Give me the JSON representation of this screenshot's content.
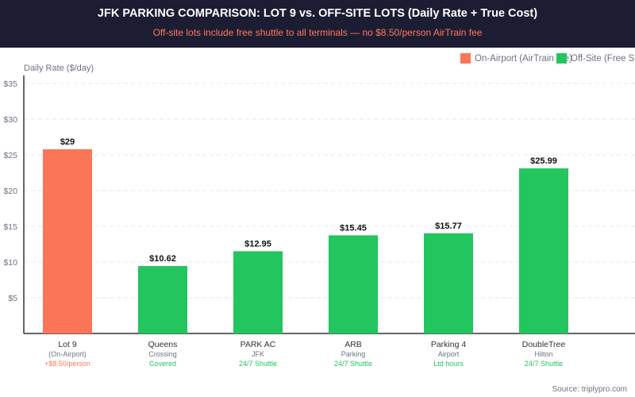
{
  "header": {
    "title": "JFK PARKING COMPARISON: LOT 9 vs. OFF-SITE LOTS (Daily Rate + True Cost)",
    "subtitle": "Off-site lots include free shuttle to all terminals — no $8.50/person AirTrain fee"
  },
  "source": "Source: triplypro.com",
  "chart_data": {
    "type": "bar",
    "ylabel": "Daily Rate ($/day)",
    "yticks": [
      "$5",
      "$10",
      "$15",
      "$20",
      "$25",
      "$30",
      "$35"
    ],
    "ytick_values": [
      5,
      10,
      15,
      20,
      25,
      30,
      35
    ],
    "ylim": [
      0,
      35
    ],
    "grid": true,
    "legend_position": "top-right",
    "legend": [
      {
        "label": "On-Airport (AirTrain fee)",
        "color": "#fb7656"
      },
      {
        "label": "Off-Site (Free Shuttle)",
        "color": "#22c55e"
      }
    ],
    "categories": [
      {
        "name": "Lot 9",
        "line2": "(On-Airport)",
        "line3": "+$8.50/person",
        "group": 0
      },
      {
        "name": "Queens",
        "line2": "Crossing",
        "line3": "Covered",
        "group": 1
      },
      {
        "name": "PARK AC",
        "line2": "JFK",
        "line3": "24/7 Shuttle",
        "group": 1
      },
      {
        "name": "ARB",
        "line2": "Parking",
        "line3": "24/7 Shuttle",
        "group": 1
      },
      {
        "name": "Parking 4",
        "line2": "Airport",
        "line3": "Ltd hours",
        "group": 1
      },
      {
        "name": "DoubleTree",
        "line2": "Hilton",
        "line3": "24/7 Shuttle",
        "group": 1
      }
    ],
    "values": [
      29,
      10.62,
      12.95,
      15.45,
      15.77,
      25.99
    ],
    "value_labels": [
      "$29",
      "$10.62",
      "$12.95",
      "$15.45",
      "$15.77",
      "$25.99"
    ]
  }
}
